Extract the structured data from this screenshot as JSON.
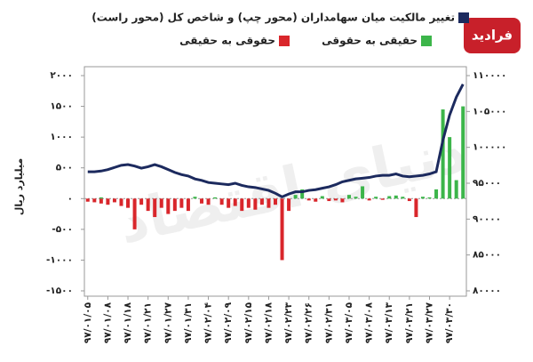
{
  "chart_data": {
    "type": "bar-line",
    "watermark": "دنیای اقتصاد",
    "logo": "فرادید",
    "ylabel": "میلیارد ریال",
    "categories": [
      "۹۷/۰۱/۰۵",
      null,
      null,
      "۹۷/۰۱/۰۸",
      null,
      null,
      "۹۷/۰۱/۱۸",
      null,
      null,
      "۹۷/۰۱/۲۱",
      null,
      null,
      "۹۷/۰۱/۲۷",
      null,
      null,
      "۹۷/۰۱/۳۱",
      null,
      null,
      "۹۷/۰۲/۰۴",
      null,
      null,
      "۹۷/۰۲/۰۹",
      null,
      null,
      "۹۷/۰۲/۱۵",
      null,
      null,
      "۹۷/۰۲/۱۸",
      null,
      null,
      "۹۷/۰۲/۲۳",
      null,
      null,
      "۹۷/۰۲/۲۶",
      null,
      null,
      "۹۷/۰۲/۳۱",
      null,
      null,
      "۹۷/۰۳/۰۵",
      null,
      null,
      "۹۷/۰۳/۰۸",
      null,
      null,
      "۹۷/۰۳/۱۳",
      null,
      null,
      "۹۷/۰۳/۲۱",
      null,
      null,
      "۹۷/۰۳/۲۷",
      null,
      null,
      "۹۷/۰۳/۳۰",
      null,
      null
    ],
    "series": [
      {
        "name": "حقوقی به حقیقی",
        "color": "#d9262b",
        "values": [
          -50,
          -60,
          -80,
          -100,
          -60,
          -120,
          -150,
          -500,
          -100,
          -200,
          -300,
          -150,
          -250,
          -200,
          -150,
          -200,
          null,
          -80,
          -100,
          null,
          -100,
          -150,
          -120,
          -200,
          -150,
          -180,
          -100,
          -150,
          -100,
          -1000,
          -200,
          null,
          null,
          -30,
          -50,
          null,
          -40,
          -30,
          -60,
          null,
          null,
          null,
          -30,
          null,
          -20,
          null,
          null,
          null,
          -40,
          -300,
          null,
          null,
          null,
          null,
          null,
          null,
          null
        ]
      },
      {
        "name": "حقیقی به حقوقی",
        "color": "#3cb54a",
        "values": [
          null,
          null,
          20,
          null,
          null,
          null,
          null,
          null,
          null,
          null,
          null,
          null,
          null,
          null,
          null,
          null,
          30,
          null,
          null,
          20,
          null,
          null,
          null,
          null,
          null,
          null,
          null,
          null,
          null,
          null,
          null,
          60,
          150,
          null,
          null,
          40,
          null,
          null,
          null,
          60,
          30,
          200,
          null,
          30,
          null,
          40,
          50,
          30,
          null,
          null,
          30,
          20,
          150,
          1450,
          1000,
          300,
          1500
        ]
      },
      {
        "name": "تغییر مالکیت میان سهامداران (محور چپ) و شاخص کل (محور راست)",
        "color": "#1c2a5e",
        "type": "line",
        "axis": "y2",
        "values": [
          96600,
          96600,
          96700,
          96900,
          97200,
          97500,
          97600,
          97400,
          97100,
          97300,
          97600,
          97300,
          96900,
          96500,
          96200,
          96000,
          95600,
          95400,
          95100,
          95000,
          94900,
          94800,
          95000,
          94700,
          94500,
          94400,
          94200,
          94000,
          93600,
          93100,
          93500,
          93800,
          93800,
          94000,
          94100,
          94300,
          94500,
          94800,
          95200,
          95400,
          95600,
          95700,
          95800,
          96000,
          96100,
          96100,
          96300,
          96000,
          95900,
          96000,
          96100,
          96300,
          96600,
          101000,
          104500,
          107000,
          108800
        ]
      }
    ],
    "ylim": [
      -1500,
      2000
    ],
    "yticks": [
      {
        "value": -1500,
        "label": "-۱۵۰۰"
      },
      {
        "value": -1000,
        "label": "-۱۰۰۰"
      },
      {
        "value": -500,
        "label": "-۵۰۰"
      },
      {
        "value": 0,
        "label": "۰"
      },
      {
        "value": 500,
        "label": "۵۰۰"
      },
      {
        "value": 1000,
        "label": "۱۰۰۰"
      },
      {
        "value": 1500,
        "label": "۱۵۰۰"
      },
      {
        "value": 2000,
        "label": "۲۰۰۰"
      }
    ],
    "y2lim": [
      80000,
      110000
    ],
    "y2ticks": [
      {
        "value": 80000,
        "label": "۸۰۰۰۰"
      },
      {
        "value": 85000,
        "label": "۸۵۰۰۰"
      },
      {
        "value": 90000,
        "label": "۹۰۰۰۰"
      },
      {
        "value": 95000,
        "label": "۹۵۰۰۰"
      },
      {
        "value": 100000,
        "label": "۱۰۰۰۰۰"
      },
      {
        "value": 105000,
        "label": "۱۰۵۰۰۰"
      },
      {
        "value": 110000,
        "label": "۱۱۰۰۰۰"
      }
    ]
  }
}
